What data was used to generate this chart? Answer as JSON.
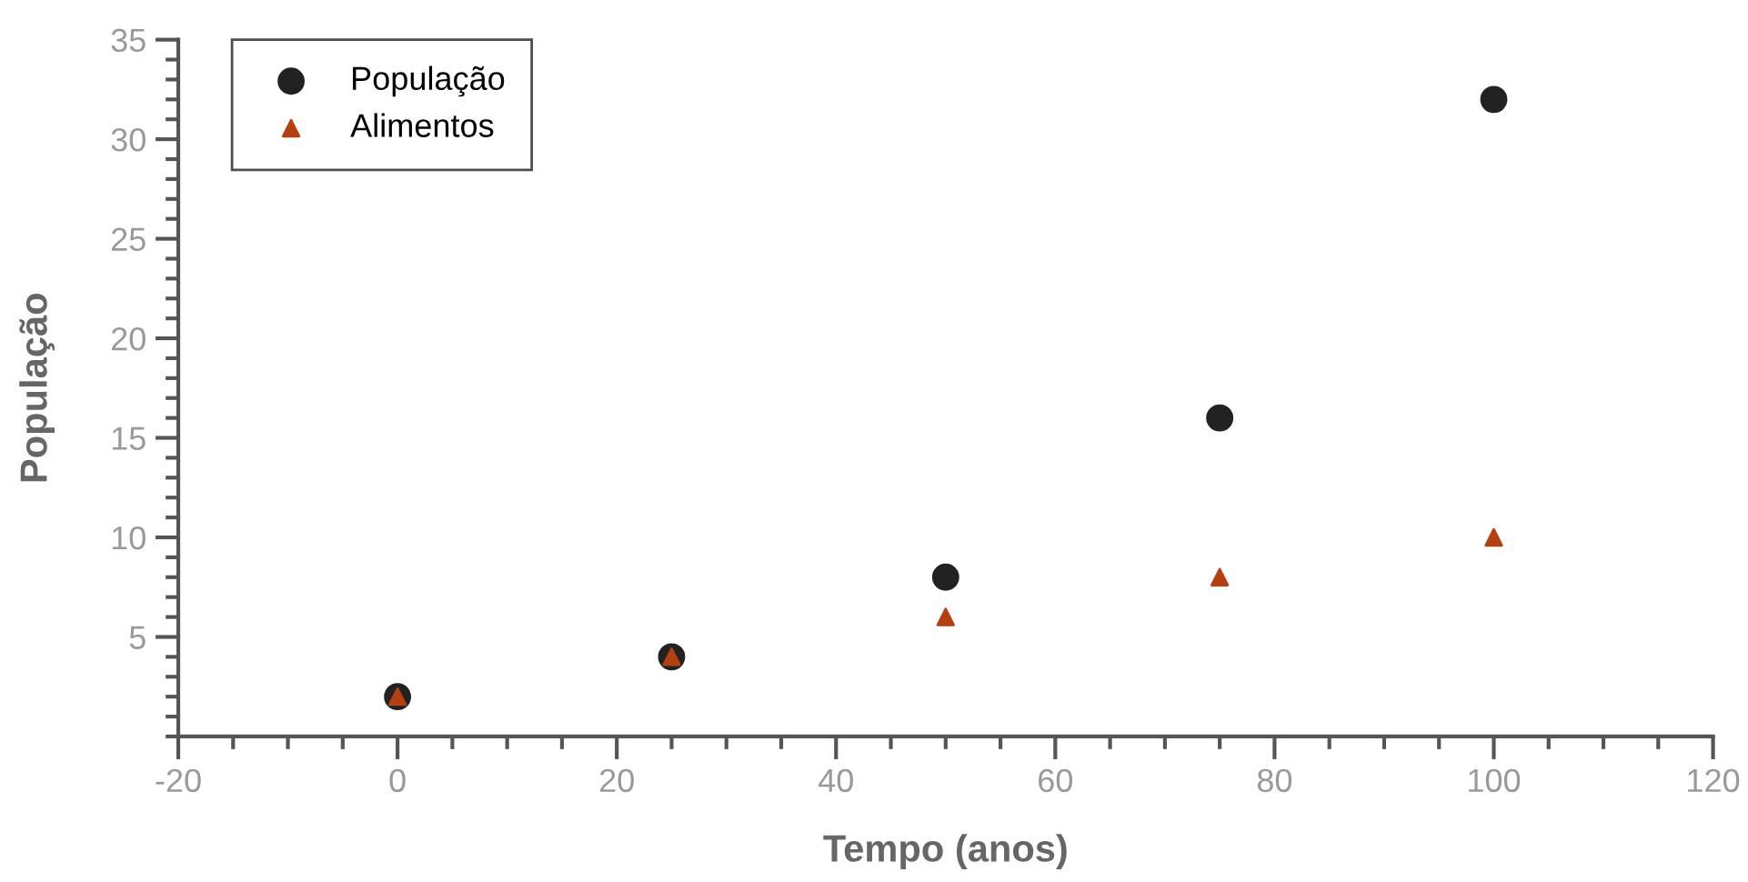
{
  "chart_data": {
    "type": "scatter",
    "xlabel": "Tempo (anos)",
    "ylabel": "População",
    "x": [
      0,
      25,
      50,
      75,
      100
    ],
    "series": [
      {
        "name": "População",
        "color": "#222222",
        "marker": "circle",
        "values": [
          2,
          4,
          8,
          16,
          32
        ]
      },
      {
        "name": "Alimentos",
        "color": "#b5400f",
        "marker": "triangle",
        "values": [
          2,
          4,
          6,
          8,
          10
        ]
      }
    ],
    "xlim": [
      -20,
      120
    ],
    "xticks": [
      -20,
      0,
      20,
      40,
      60,
      80,
      100,
      120
    ],
    "ylim": [
      0,
      35
    ],
    "yticks": [
      5,
      10,
      15,
      20,
      25,
      30,
      35
    ],
    "grid": false,
    "legend": "top left"
  }
}
